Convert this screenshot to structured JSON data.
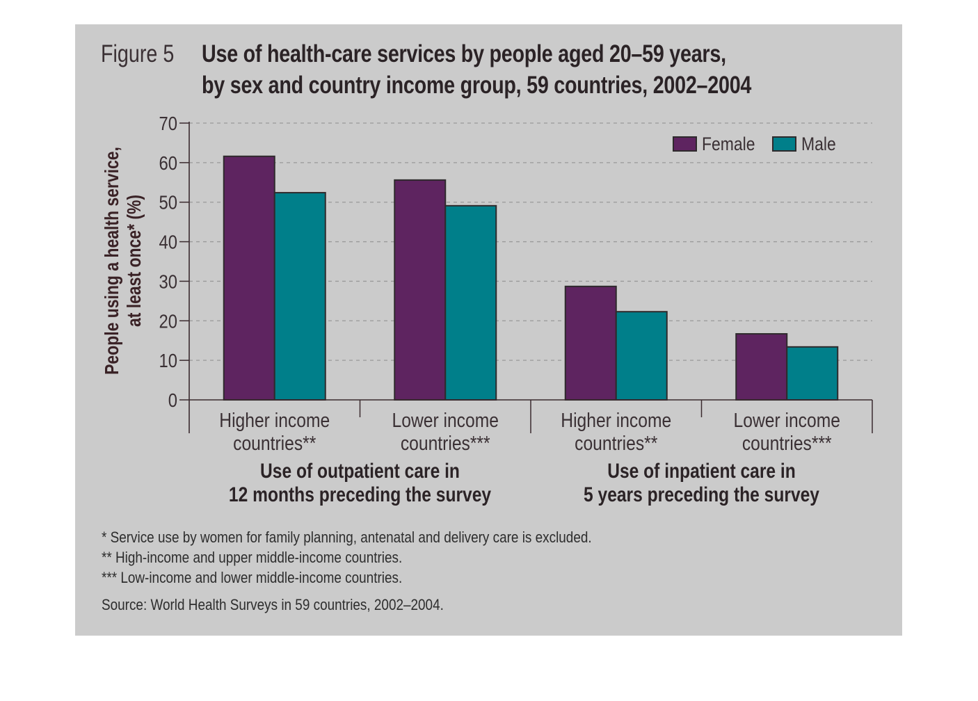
{
  "figure": {
    "label": "Figure 5",
    "title_line1": "Use of health-care services by people aged 20–59 years,",
    "title_line2": "by sex and country income group, 59 countries, 2002–2004"
  },
  "chart_data": {
    "type": "bar",
    "title": "Use of health-care services by people aged 20–59 years, by sex and country income group, 59 countries, 2002–2004",
    "ylabel_line1": "People using a health service,",
    "ylabel_line2": "at least once* (%)",
    "xlabel": "",
    "ylim": [
      0,
      70
    ],
    "yticks": [
      0,
      10,
      20,
      30,
      40,
      50,
      60,
      70
    ],
    "grid": true,
    "legend_position": "top-right",
    "categories": [
      {
        "line1": "Higher income",
        "line2": "countries**"
      },
      {
        "line1": "Lower income",
        "line2": "countries***"
      },
      {
        "line1": "Higher income",
        "line2": "countries**"
      },
      {
        "line1": "Lower income",
        "line2": "countries***"
      }
    ],
    "groups": [
      {
        "line1": "Use of outpatient care in",
        "line2": "12 months preceding the survey",
        "categories": [
          0,
          1
        ]
      },
      {
        "line1": "Use of inpatient care in",
        "line2": "5 years preceding the survey",
        "categories": [
          2,
          3
        ]
      }
    ],
    "series": [
      {
        "name": "Female",
        "color": "#5e2460",
        "values": [
          61.6,
          55.6,
          28.7,
          16.7
        ]
      },
      {
        "name": "Male",
        "color": "#007f8a",
        "values": [
          52.4,
          49.1,
          22.3,
          13.4
        ]
      }
    ]
  },
  "footnotes": [
    "* Service use by women for family planning, antenatal and delivery care is excluded.",
    "** High-income and upper middle-income countries.",
    "*** Low-income and lower middle-income countries."
  ],
  "source": "Source: World Health Surveys in 59 countries, 2002–2004."
}
